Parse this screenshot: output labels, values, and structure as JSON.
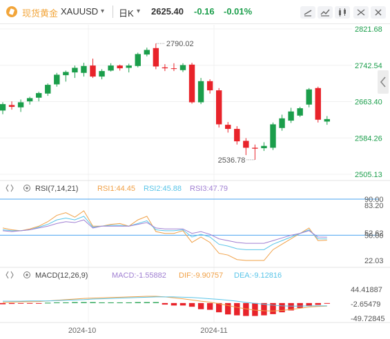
{
  "header": {
    "name": "现货黄金",
    "symbol": "XAUUSD",
    "symbol_dropdown": "▾",
    "period": "日K",
    "period_dropdown": "▾",
    "last_price": "2625.40",
    "change": "-0.16",
    "change_pct": "-0.01%",
    "tools": [
      "draw-icon",
      "indicator-icon",
      "candlestick-type-icon",
      "fullscreen-icon",
      "close-icon"
    ]
  },
  "colors": {
    "up": "#1b9e4b",
    "down": "#e8232a",
    "accent_green": "#1b9e4b",
    "rsi1": "#f0a046",
    "rsi2": "#58c4e8",
    "rsi3": "#a07fd2",
    "dif": "#f0a046",
    "dea": "#58c4e8",
    "ref_line": "#4aa3f0"
  },
  "chart_data": [
    {
      "type": "candlestick",
      "y_ticks": [
        "2821.68",
        "2742.54",
        "2663.40",
        "2584.26",
        "2505.13"
      ],
      "ylim": [
        2505.13,
        2821.68
      ],
      "x_tick_labels": [
        "2024-10",
        "2024-11"
      ],
      "annotations": [
        {
          "label": "2790.02",
          "value": 2790.02,
          "kind": "high"
        },
        {
          "label": "2536.78",
          "value": 2536.78,
          "kind": "low"
        }
      ],
      "candles": [
        {
          "o": 2644,
          "h": 2662,
          "l": 2636,
          "c": 2658
        },
        {
          "o": 2656,
          "h": 2664,
          "l": 2646,
          "c": 2652
        },
        {
          "o": 2651,
          "h": 2668,
          "l": 2641,
          "c": 2662
        },
        {
          "o": 2664,
          "h": 2674,
          "l": 2657,
          "c": 2671
        },
        {
          "o": 2672,
          "h": 2685,
          "l": 2664,
          "c": 2682
        },
        {
          "o": 2681,
          "h": 2703,
          "l": 2676,
          "c": 2700
        },
        {
          "o": 2701,
          "h": 2726,
          "l": 2696,
          "c": 2722
        },
        {
          "o": 2721,
          "h": 2731,
          "l": 2707,
          "c": 2728
        },
        {
          "o": 2727,
          "h": 2742,
          "l": 2715,
          "c": 2737
        },
        {
          "o": 2726,
          "h": 2748,
          "l": 2718,
          "c": 2741
        },
        {
          "o": 2742,
          "h": 2757,
          "l": 2715,
          "c": 2718
        },
        {
          "o": 2718,
          "h": 2734,
          "l": 2712,
          "c": 2730
        },
        {
          "o": 2731,
          "h": 2747,
          "l": 2729,
          "c": 2742
        },
        {
          "o": 2742,
          "h": 2744,
          "l": 2731,
          "c": 2736
        },
        {
          "o": 2737,
          "h": 2746,
          "l": 2727,
          "c": 2742
        },
        {
          "o": 2741,
          "h": 2770,
          "l": 2738,
          "c": 2767
        },
        {
          "o": 2766,
          "h": 2781,
          "l": 2762,
          "c": 2776
        },
        {
          "o": 2780,
          "h": 2790.02,
          "l": 2734,
          "c": 2740
        },
        {
          "o": 2738,
          "h": 2745,
          "l": 2730,
          "c": 2736
        },
        {
          "o": 2736,
          "h": 2747,
          "l": 2730,
          "c": 2735
        },
        {
          "o": 2732,
          "h": 2747,
          "l": 2728,
          "c": 2743
        },
        {
          "o": 2744,
          "h": 2748,
          "l": 2659,
          "c": 2662
        },
        {
          "o": 2662,
          "h": 2715,
          "l": 2658,
          "c": 2708
        },
        {
          "o": 2708,
          "h": 2712,
          "l": 2681,
          "c": 2688
        },
        {
          "o": 2688,
          "h": 2693,
          "l": 2607,
          "c": 2614
        },
        {
          "o": 2613,
          "h": 2619,
          "l": 2596,
          "c": 2604
        },
        {
          "o": 2604,
          "h": 2610,
          "l": 2570,
          "c": 2577
        },
        {
          "o": 2578,
          "h": 2584,
          "l": 2547,
          "c": 2563
        },
        {
          "o": 2563,
          "h": 2570,
          "l": 2536.78,
          "c": 2561
        },
        {
          "o": 2562,
          "h": 2575,
          "l": 2556,
          "c": 2567
        },
        {
          "o": 2563,
          "h": 2618,
          "l": 2558,
          "c": 2614
        },
        {
          "o": 2606,
          "h": 2635,
          "l": 2600,
          "c": 2627
        },
        {
          "o": 2622,
          "h": 2650,
          "l": 2617,
          "c": 2642
        },
        {
          "o": 2633,
          "h": 2652,
          "l": 2630,
          "c": 2649
        },
        {
          "o": 2657,
          "h": 2693,
          "l": 2651,
          "c": 2690
        },
        {
          "o": 2693,
          "h": 2696,
          "l": 2618,
          "c": 2624
        },
        {
          "o": 2620,
          "h": 2632,
          "l": 2613,
          "c": 2625.4
        }
      ]
    },
    {
      "type": "line",
      "name": "RSI",
      "legend": {
        "title": "RSI(7,14,21)",
        "rsi1": "RSI1:44.45",
        "rsi2": "RSI2:45.88",
        "rsi3": "RSI3:47.79"
      },
      "y_ticks": [
        "90.00",
        "83.20",
        "52.62",
        "50.00",
        "22.03"
      ],
      "ylim": [
        22.03,
        90.0
      ],
      "ref_lines": [
        90.0,
        50.0
      ],
      "series": [
        {
          "name": "RSI1",
          "values": [
            58,
            56,
            55,
            57,
            60,
            65,
            72,
            75,
            70,
            77,
            60,
            60,
            62,
            63,
            60,
            67,
            71,
            54,
            52,
            52,
            55,
            42,
            48,
            42,
            30,
            28,
            23,
            22,
            22,
            22,
            34,
            40,
            46,
            52,
            58,
            44,
            44.45
          ]
        },
        {
          "name": "RSI2",
          "values": [
            56,
            55,
            55,
            56,
            59,
            62,
            67,
            69,
            67,
            71,
            59,
            60,
            61,
            61,
            60,
            63,
            66,
            56,
            55,
            55,
            56,
            48,
            51,
            48,
            40,
            38,
            35,
            34,
            34,
            34,
            40,
            44,
            48,
            52,
            56,
            46,
            45.88
          ]
        },
        {
          "name": "RSI3",
          "values": [
            55,
            54,
            55,
            56,
            58,
            60,
            63,
            65,
            64,
            67,
            58,
            60,
            60,
            60,
            60,
            62,
            64,
            58,
            57,
            57,
            57,
            52,
            54,
            51,
            46,
            44,
            42,
            41,
            41,
            41,
            44,
            47,
            50,
            52,
            55,
            48,
            47.79
          ]
        }
      ]
    },
    {
      "type": "bar",
      "name": "MACD",
      "legend": {
        "title": "MACD(12,26,9)",
        "macd": "MACD:-1.55882",
        "dif": "DIF:-9.90757",
        "dea": "DEA:-9.12816"
      },
      "y_ticks": [
        "44.41887",
        "-2.65479",
        "-49.72845"
      ],
      "ylim": [
        -49.72845,
        44.41887
      ],
      "x_tick_labels": [
        "2024-10",
        "2024-11"
      ],
      "series": [
        {
          "name": "MACD",
          "values": [
            -4,
            -3,
            -2,
            -2,
            -2,
            1,
            2,
            2,
            3,
            3,
            3,
            2,
            2,
            2,
            2,
            3,
            3,
            3,
            -5,
            -8,
            -8,
            -12,
            -20,
            -22,
            -30,
            -37,
            -40,
            -42,
            -42,
            -40,
            -36,
            -30,
            -24,
            -16,
            -10,
            -6,
            -1.56
          ]
        },
        {
          "name": "DIF",
          "values": [
            2,
            3,
            4,
            4,
            5,
            7,
            9,
            11,
            13,
            15,
            16,
            17,
            18,
            19,
            20,
            21,
            22,
            22,
            20,
            17,
            14,
            10,
            6,
            3,
            -2,
            -8,
            -14,
            -19,
            -23,
            -25,
            -26,
            -24,
            -21,
            -17,
            -13,
            -11,
            -9.91
          ]
        },
        {
          "name": "DEA",
          "values": [
            6,
            6,
            6,
            7,
            7,
            7,
            8,
            9,
            10,
            11,
            13,
            14,
            15,
            16,
            17,
            18,
            19,
            20,
            20,
            20,
            19,
            18,
            16,
            14,
            12,
            9,
            6,
            2,
            -1,
            -4,
            -7,
            -9,
            -10,
            -10,
            -9,
            -9,
            -9.13
          ]
        }
      ]
    }
  ]
}
